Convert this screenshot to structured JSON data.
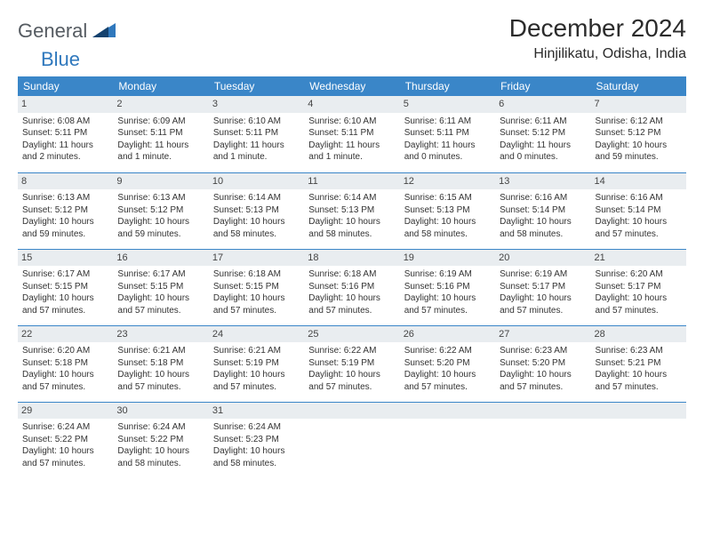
{
  "brand": {
    "part1": "General",
    "part2": "Blue"
  },
  "title": "December 2024",
  "location": "Hinjilikatu, Odisha, India",
  "colors": {
    "header_bg": "#3a86c8",
    "header_text": "#ffffff",
    "daynum_bg": "#e9edf0",
    "rule": "#3a86c8",
    "brand_gray": "#555b61",
    "brand_blue": "#2f78bd",
    "page_bg": "#ffffff"
  },
  "weekdays": [
    "Sunday",
    "Monday",
    "Tuesday",
    "Wednesday",
    "Thursday",
    "Friday",
    "Saturday"
  ],
  "layout": {
    "cols": 7,
    "rows": 5,
    "col_width_pct": 14.28
  },
  "fonts": {
    "month_title_pt": 28,
    "location_pt": 16,
    "weekday_pt": 12,
    "daynum_pt": 11,
    "cell_pt": 10
  },
  "days": [
    {
      "n": "1",
      "sunrise": "6:08 AM",
      "sunset": "5:11 PM",
      "daylight": "11 hours and 2 minutes."
    },
    {
      "n": "2",
      "sunrise": "6:09 AM",
      "sunset": "5:11 PM",
      "daylight": "11 hours and 1 minute."
    },
    {
      "n": "3",
      "sunrise": "6:10 AM",
      "sunset": "5:11 PM",
      "daylight": "11 hours and 1 minute."
    },
    {
      "n": "4",
      "sunrise": "6:10 AM",
      "sunset": "5:11 PM",
      "daylight": "11 hours and 1 minute."
    },
    {
      "n": "5",
      "sunrise": "6:11 AM",
      "sunset": "5:11 PM",
      "daylight": "11 hours and 0 minutes."
    },
    {
      "n": "6",
      "sunrise": "6:11 AM",
      "sunset": "5:12 PM",
      "daylight": "11 hours and 0 minutes."
    },
    {
      "n": "7",
      "sunrise": "6:12 AM",
      "sunset": "5:12 PM",
      "daylight": "10 hours and 59 minutes."
    },
    {
      "n": "8",
      "sunrise": "6:13 AM",
      "sunset": "5:12 PM",
      "daylight": "10 hours and 59 minutes."
    },
    {
      "n": "9",
      "sunrise": "6:13 AM",
      "sunset": "5:12 PM",
      "daylight": "10 hours and 59 minutes."
    },
    {
      "n": "10",
      "sunrise": "6:14 AM",
      "sunset": "5:13 PM",
      "daylight": "10 hours and 58 minutes."
    },
    {
      "n": "11",
      "sunrise": "6:14 AM",
      "sunset": "5:13 PM",
      "daylight": "10 hours and 58 minutes."
    },
    {
      "n": "12",
      "sunrise": "6:15 AM",
      "sunset": "5:13 PM",
      "daylight": "10 hours and 58 minutes."
    },
    {
      "n": "13",
      "sunrise": "6:16 AM",
      "sunset": "5:14 PM",
      "daylight": "10 hours and 58 minutes."
    },
    {
      "n": "14",
      "sunrise": "6:16 AM",
      "sunset": "5:14 PM",
      "daylight": "10 hours and 57 minutes."
    },
    {
      "n": "15",
      "sunrise": "6:17 AM",
      "sunset": "5:15 PM",
      "daylight": "10 hours and 57 minutes."
    },
    {
      "n": "16",
      "sunrise": "6:17 AM",
      "sunset": "5:15 PM",
      "daylight": "10 hours and 57 minutes."
    },
    {
      "n": "17",
      "sunrise": "6:18 AM",
      "sunset": "5:15 PM",
      "daylight": "10 hours and 57 minutes."
    },
    {
      "n": "18",
      "sunrise": "6:18 AM",
      "sunset": "5:16 PM",
      "daylight": "10 hours and 57 minutes."
    },
    {
      "n": "19",
      "sunrise": "6:19 AM",
      "sunset": "5:16 PM",
      "daylight": "10 hours and 57 minutes."
    },
    {
      "n": "20",
      "sunrise": "6:19 AM",
      "sunset": "5:17 PM",
      "daylight": "10 hours and 57 minutes."
    },
    {
      "n": "21",
      "sunrise": "6:20 AM",
      "sunset": "5:17 PM",
      "daylight": "10 hours and 57 minutes."
    },
    {
      "n": "22",
      "sunrise": "6:20 AM",
      "sunset": "5:18 PM",
      "daylight": "10 hours and 57 minutes."
    },
    {
      "n": "23",
      "sunrise": "6:21 AM",
      "sunset": "5:18 PM",
      "daylight": "10 hours and 57 minutes."
    },
    {
      "n": "24",
      "sunrise": "6:21 AM",
      "sunset": "5:19 PM",
      "daylight": "10 hours and 57 minutes."
    },
    {
      "n": "25",
      "sunrise": "6:22 AM",
      "sunset": "5:19 PM",
      "daylight": "10 hours and 57 minutes."
    },
    {
      "n": "26",
      "sunrise": "6:22 AM",
      "sunset": "5:20 PM",
      "daylight": "10 hours and 57 minutes."
    },
    {
      "n": "27",
      "sunrise": "6:23 AM",
      "sunset": "5:20 PM",
      "daylight": "10 hours and 57 minutes."
    },
    {
      "n": "28",
      "sunrise": "6:23 AM",
      "sunset": "5:21 PM",
      "daylight": "10 hours and 57 minutes."
    },
    {
      "n": "29",
      "sunrise": "6:24 AM",
      "sunset": "5:22 PM",
      "daylight": "10 hours and 57 minutes."
    },
    {
      "n": "30",
      "sunrise": "6:24 AM",
      "sunset": "5:22 PM",
      "daylight": "10 hours and 58 minutes."
    },
    {
      "n": "31",
      "sunrise": "6:24 AM",
      "sunset": "5:23 PM",
      "daylight": "10 hours and 58 minutes."
    }
  ],
  "labels": {
    "sunrise": "Sunrise: ",
    "sunset": "Sunset: ",
    "daylight": "Daylight: "
  }
}
